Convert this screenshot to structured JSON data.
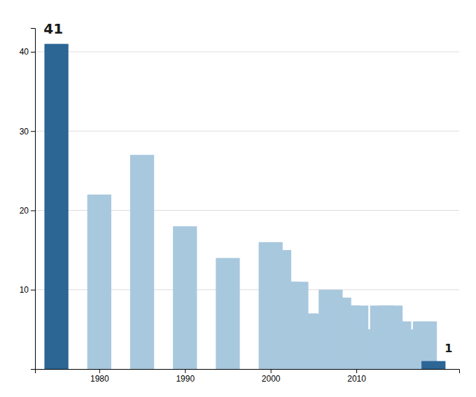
{
  "chart_data": {
    "type": "bar",
    "x": [
      1975,
      1980,
      1985,
      1990,
      1995,
      2000,
      2001,
      2002,
      2003,
      2004,
      2006,
      2007,
      2008,
      2009,
      2010,
      2011,
      2012,
      2013,
      2014,
      2015,
      2016,
      2017,
      2018,
      2019
    ],
    "values": [
      41,
      22,
      27,
      18,
      14,
      16,
      15,
      11,
      11,
      7,
      7,
      10,
      9,
      8,
      8,
      3,
      5,
      8,
      8,
      6,
      5,
      4,
      6,
      1
    ],
    "colors": [
      "#2b6695",
      "#a8c8de",
      "#a8c8de",
      "#a8c8de",
      "#a8c8de",
      "#a8c8de",
      "#a8c8de",
      "#a8c8de",
      "#a8c8de",
      "#a8c8de",
      "#a8c8de",
      "#a8c8de",
      "#a8c8de",
      "#a8c8de",
      "#a8c8de",
      "#a8c8de",
      "#a8c8de",
      "#a8c8de",
      "#a8c8de",
      "#a8c8de",
      "#a8c8de",
      "#a8c8de",
      "#a8c8de",
      "#2b6695"
    ],
    "xlim": [
      1972.5,
      2022
    ],
    "ylim": [
      0,
      43
    ],
    "xticks": [
      1980,
      1990,
      2000,
      2010
    ],
    "yticks": [
      10,
      20,
      30,
      40
    ],
    "grid": true,
    "annotations": [
      {
        "text": "41",
        "x": 1973.5,
        "y": 42.0
      },
      {
        "text": "1",
        "x": 2020.3,
        "y": 2.5
      }
    ]
  }
}
